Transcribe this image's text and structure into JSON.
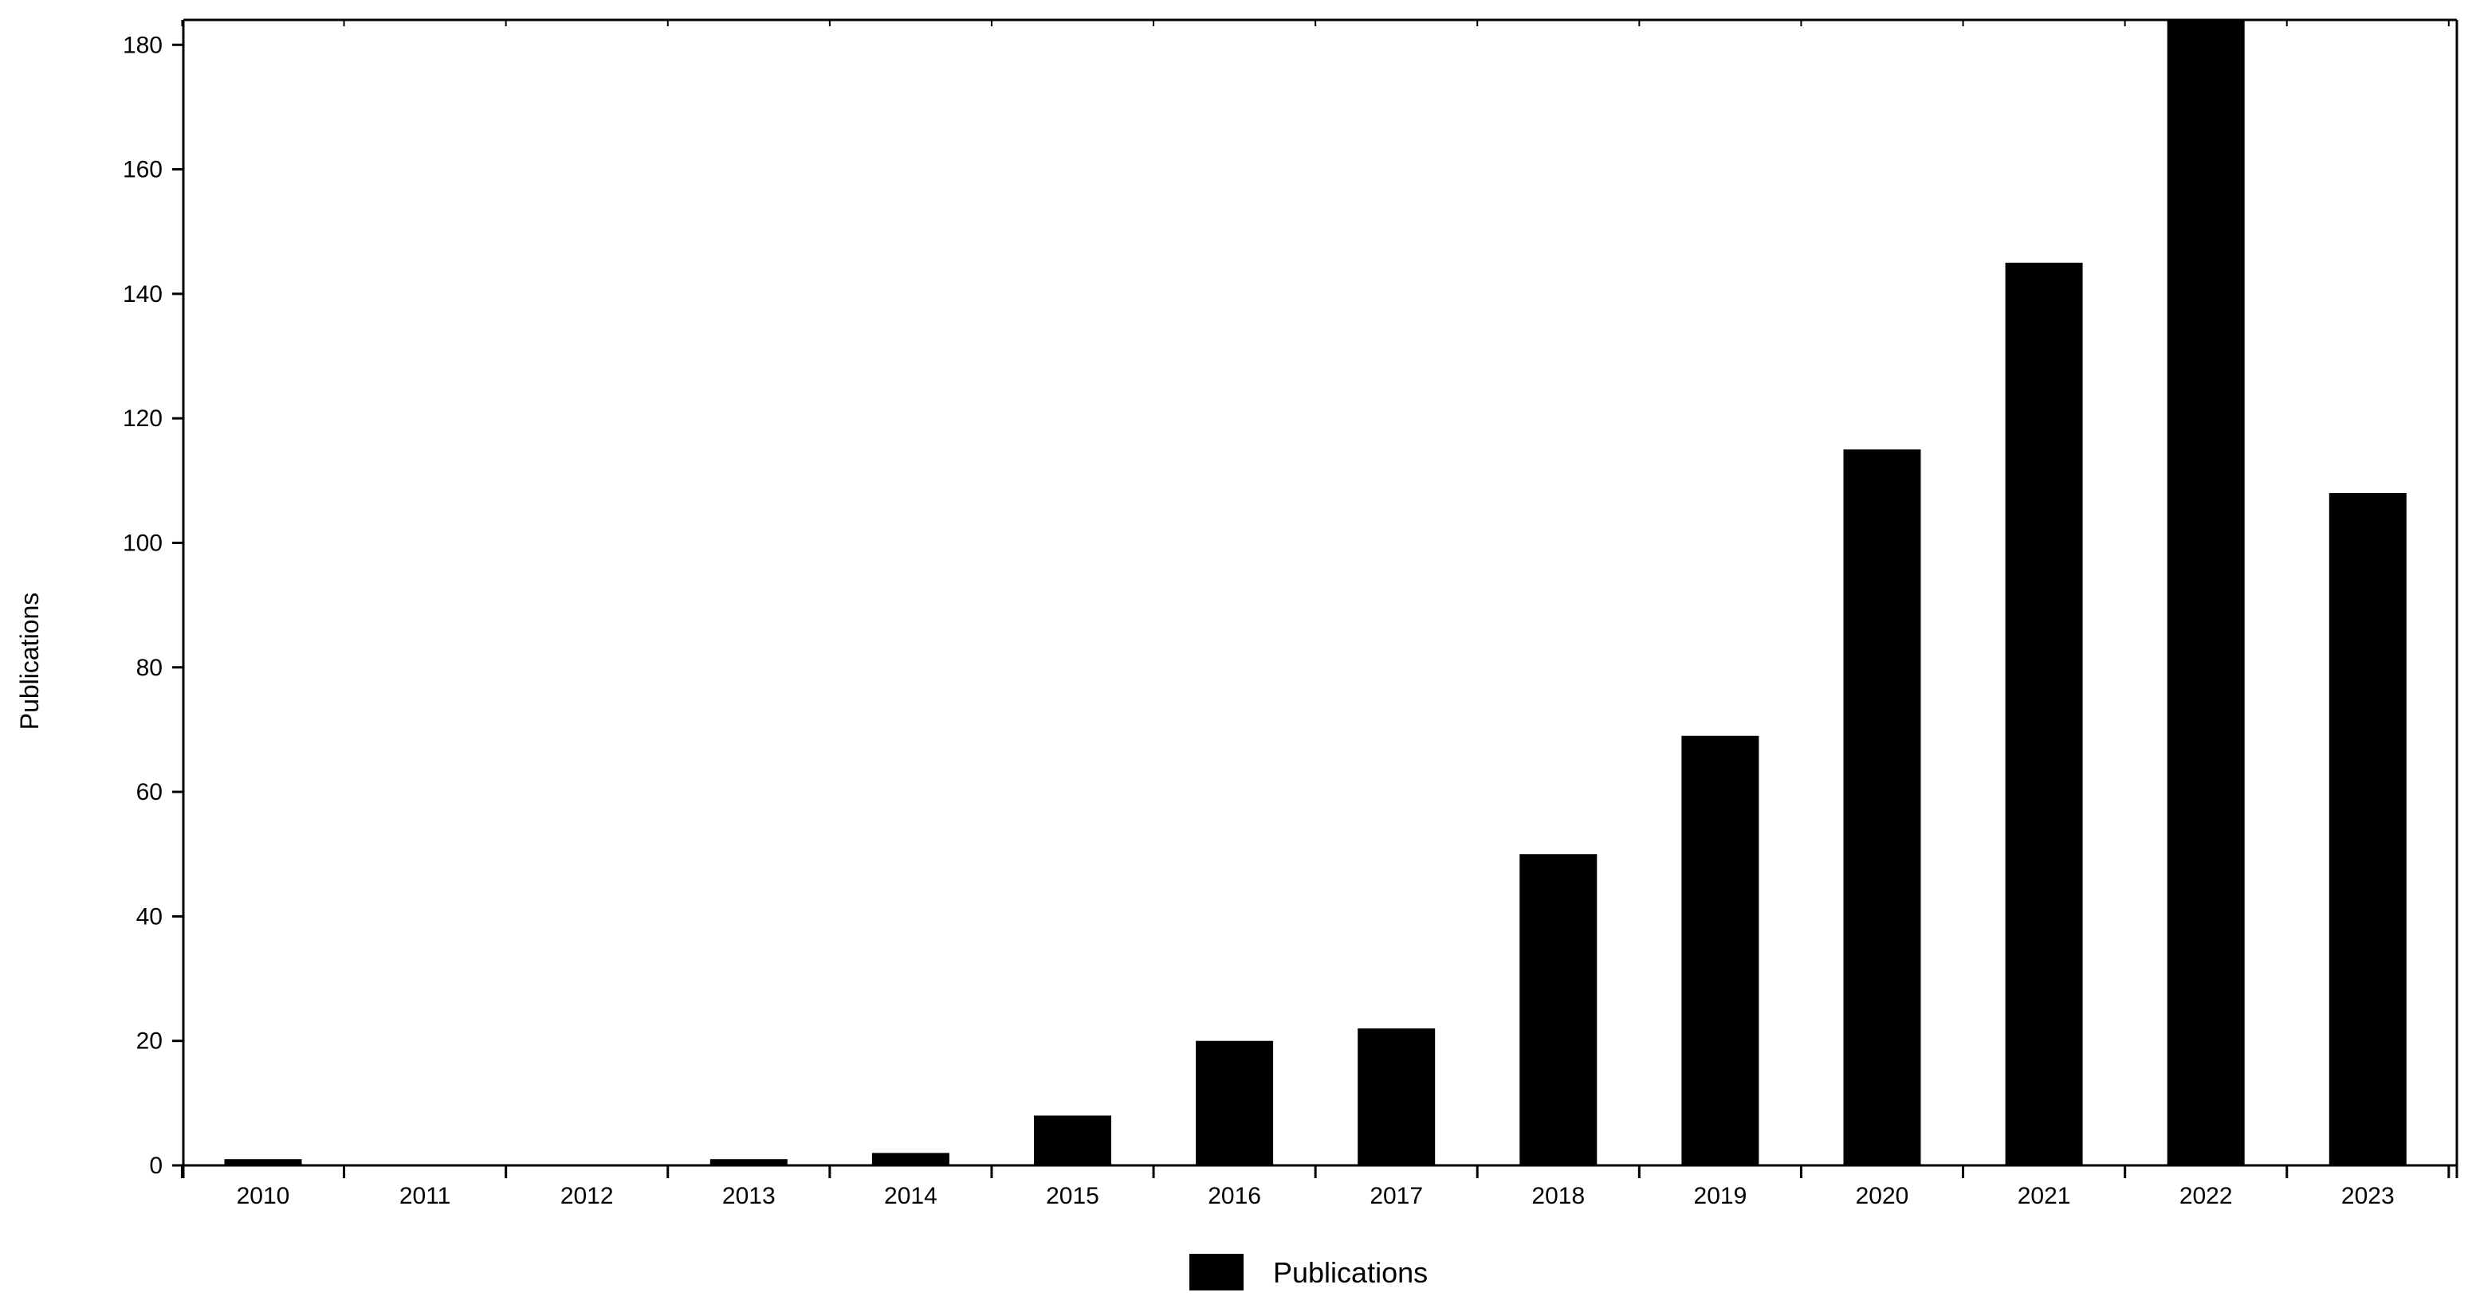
{
  "chart_data": {
    "type": "bar",
    "categories": [
      "2010",
      "2011",
      "2012",
      "2013",
      "2014",
      "2015",
      "2016",
      "2017",
      "2018",
      "2019",
      "2020",
      "2021",
      "2022",
      "2023"
    ],
    "series": [
      {
        "name": "Publications",
        "values": [
          1,
          0,
          0,
          1,
          2,
          8,
          20,
          22,
          50,
          69,
          115,
          145,
          184,
          108
        ],
        "color": "#000000"
      }
    ],
    "title": "",
    "xlabel": "",
    "ylabel": "Publications",
    "ylim": [
      0,
      184
    ],
    "yticks": [
      0,
      20,
      40,
      60,
      80,
      100,
      120,
      140,
      160,
      180
    ],
    "grid": false,
    "legend": {
      "position": "bottom-center",
      "entries": [
        "Publications"
      ]
    }
  }
}
